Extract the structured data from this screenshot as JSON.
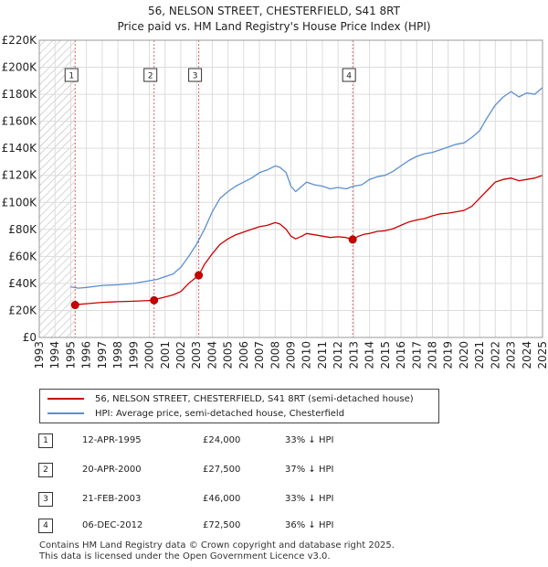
{
  "title_line1": "56, NELSON STREET, CHESTERFIELD, S41 8RT",
  "title_line2": "Price paid vs. HM Land Registry's House Price Index (HPI)",
  "legend": {
    "property": "56, NELSON STREET, CHESTERFIELD, S41 8RT (semi-detached house)",
    "hpi": "HPI: Average price, semi-detached house, Chesterfield"
  },
  "colors": {
    "property": "#cc0000",
    "hpi": "#5b8fd1",
    "grid": "#dcdcdc",
    "hatch": "#b0b0b0"
  },
  "transactions": [
    {
      "num": "1",
      "date": "12-APR-1995",
      "price": "£24,000",
      "hpi_diff": "33% ↓ HPI"
    },
    {
      "num": "2",
      "date": "20-APR-2000",
      "price": "£27,500",
      "hpi_diff": "37% ↓ HPI"
    },
    {
      "num": "3",
      "date": "21-FEB-2003",
      "price": "£46,000",
      "hpi_diff": "33% ↓ HPI"
    },
    {
      "num": "4",
      "date": "06-DEC-2012",
      "price": "£72,500",
      "hpi_diff": "36% ↓ HPI"
    }
  ],
  "footer_line1": "Contains HM Land Registry data © Crown copyright and database right 2025.",
  "footer_line2": "This data is licensed under the Open Government Licence v3.0.",
  "chart_data": {
    "type": "line",
    "title": "Price paid vs. HM Land Registry's House Price Index (HPI)",
    "xlim": [
      1993,
      2025
    ],
    "ylim": [
      0,
      220000
    ],
    "x_ticks": [
      "1993",
      "1994",
      "1995",
      "1996",
      "1997",
      "1998",
      "1999",
      "2000",
      "2001",
      "2002",
      "2003",
      "2004",
      "2005",
      "2006",
      "2007",
      "2008",
      "2009",
      "2010",
      "2011",
      "2012",
      "2013",
      "2014",
      "2015",
      "2016",
      "2017",
      "2018",
      "2019",
      "2020",
      "2021",
      "2022",
      "2023",
      "2024",
      "2025"
    ],
    "y_ticks": [
      {
        "value": 0,
        "label": "£0"
      },
      {
        "value": 20000,
        "label": "£20K"
      },
      {
        "value": 40000,
        "label": "£40K"
      },
      {
        "value": 60000,
        "label": "£60K"
      },
      {
        "value": 80000,
        "label": "£80K"
      },
      {
        "value": 100000,
        "label": "£100K"
      },
      {
        "value": 120000,
        "label": "£120K"
      },
      {
        "value": 140000,
        "label": "£140K"
      },
      {
        "value": 160000,
        "label": "£160K"
      },
      {
        "value": 180000,
        "label": "£180K"
      },
      {
        "value": 200000,
        "label": "£200K"
      },
      {
        "value": 220000,
        "label": "£220K"
      }
    ],
    "hatch_before": 1995.28,
    "series": [
      {
        "name": "HPI: Average price, semi-detached house, Chesterfield",
        "x": [
          1995.0,
          1995.5,
          1996,
          1997,
          1998,
          1999,
          2000,
          2000.5,
          2001,
          2001.5,
          2002,
          2002.5,
          2003,
          2003.5,
          2004,
          2004.5,
          2005,
          2005.5,
          2006,
          2006.5,
          2007,
          2007.5,
          2008,
          2008.3,
          2008.7,
          2009,
          2009.3,
          2009.7,
          2010,
          2010.5,
          2011,
          2011.5,
          2012,
          2012.5,
          2013,
          2013.5,
          2014,
          2014.5,
          2015,
          2015.5,
          2016,
          2016.5,
          2017,
          2017.5,
          2018,
          2018.5,
          2019,
          2019.5,
          2020,
          2020.5,
          2021,
          2021.5,
          2022,
          2022.5,
          2023,
          2023.5,
          2024,
          2024.5,
          2025
        ],
        "values": [
          37500,
          36500,
          37000,
          38500,
          39000,
          40000,
          42000,
          43000,
          45000,
          47000,
          52000,
          60000,
          69000,
          80000,
          93000,
          103000,
          108000,
          112000,
          115000,
          118000,
          122000,
          124000,
          127000,
          126000,
          122000,
          112000,
          108000,
          112000,
          115000,
          113000,
          112000,
          110000,
          111000,
          110000,
          112000,
          113000,
          117000,
          119000,
          120000,
          123000,
          127000,
          131000,
          134000,
          136000,
          137000,
          139000,
          141000,
          143000,
          144000,
          148000,
          153000,
          163000,
          172000,
          178000,
          182000,
          178000,
          181000,
          180000,
          185000
        ]
      },
      {
        "name": "56, NELSON STREET, CHESTERFIELD, S41 8RT (semi-detached house)",
        "x": [
          1995.28,
          1995.5,
          1996,
          1997,
          1998,
          1999,
          2000.3,
          2000.5,
          2001,
          2001.5,
          2002,
          2002.5,
          2003.14,
          2003.5,
          2004,
          2004.5,
          2005,
          2005.5,
          2006,
          2006.5,
          2007,
          2007.5,
          2008,
          2008.3,
          2008.7,
          2009,
          2009.3,
          2009.7,
          2010,
          2010.5,
          2011,
          2011.5,
          2012,
          2012.5,
          2012.93,
          2013.3,
          2013.7,
          2014,
          2014.5,
          2015,
          2015.5,
          2016,
          2016.5,
          2017,
          2017.5,
          2018,
          2018.5,
          2019,
          2019.5,
          2020,
          2020.5,
          2021,
          2021.5,
          2022,
          2022.5,
          2023,
          2023.5,
          2024,
          2024.5,
          2025
        ],
        "values": [
          24000,
          24500,
          25000,
          26000,
          26500,
          26800,
          27500,
          28500,
          30000,
          31500,
          34000,
          40000,
          46000,
          54000,
          62000,
          69000,
          73000,
          76000,
          78000,
          80000,
          82000,
          83000,
          85000,
          84000,
          80000,
          75000,
          73000,
          75000,
          77000,
          76000,
          75000,
          74000,
          74500,
          74000,
          72500,
          75000,
          76500,
          77000,
          78500,
          79000,
          80500,
          83000,
          85500,
          87000,
          88000,
          90000,
          91500,
          92000,
          93000,
          94000,
          97000,
          103000,
          109000,
          115000,
          117000,
          118000,
          116000,
          117000,
          118000,
          120000
        ]
      }
    ],
    "markers": [
      {
        "num": "1",
        "x": 1995.28,
        "y": 24000
      },
      {
        "num": "2",
        "x": 2000.3,
        "y": 27500
      },
      {
        "num": "3",
        "x": 2003.14,
        "y": 46000
      },
      {
        "num": "4",
        "x": 2012.93,
        "y": 72500
      }
    ]
  }
}
